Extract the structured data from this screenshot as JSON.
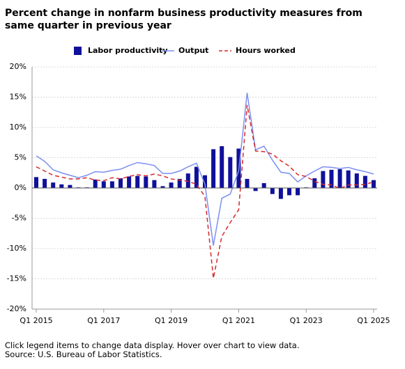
{
  "chart_data": {
    "type": "bar",
    "title": "Percent change in nonfarm business productivity measures from same quarter in previous year",
    "notes": [
      "Click legend items to change data display. Hover over chart to view data.",
      "Source: U.S. Bureau of Labor Statistics."
    ],
    "categories": [
      "Q1 2015",
      null,
      null,
      null,
      null,
      null,
      null,
      null,
      "Q1 2017",
      null,
      null,
      null,
      null,
      null,
      null,
      null,
      "Q1 2019",
      null,
      null,
      null,
      null,
      null,
      null,
      null,
      "Q1 2021",
      null,
      null,
      null,
      null,
      null,
      null,
      null,
      "Q1 2023",
      null,
      null,
      null,
      null,
      null,
      null,
      null,
      "Q1 2025"
    ],
    "series": [
      {
        "name": "Labor productivity",
        "type": "bar",
        "color": "#10109a",
        "values": [
          1.8,
          1.5,
          0.9,
          0.6,
          0.5,
          0.1,
          0.1,
          1.4,
          1.1,
          1.1,
          1.6,
          1.9,
          2.0,
          1.9,
          1.3,
          0.3,
          0.9,
          1.5,
          2.4,
          3.5,
          2.1,
          6.4,
          6.9,
          5.1,
          6.5,
          1.5,
          -0.5,
          0.8,
          -1.0,
          -1.8,
          -1.2,
          -1.2,
          0.1,
          1.6,
          2.8,
          3.0,
          3.1,
          2.9,
          2.4,
          2.0,
          1.3
        ]
      },
      {
        "name": "Output",
        "type": "line",
        "color": "#7b8ff2",
        "values": [
          5.3,
          4.4,
          3.0,
          2.5,
          2.1,
          1.7,
          2.1,
          2.7,
          2.6,
          2.9,
          3.1,
          3.7,
          4.2,
          4.0,
          3.7,
          2.4,
          2.4,
          2.8,
          3.5,
          4.1,
          0.6,
          -9.5,
          -1.7,
          -1.0,
          2.8,
          15.7,
          6.3,
          6.9,
          4.6,
          2.6,
          2.4,
          1.0,
          2.0,
          2.8,
          3.5,
          3.4,
          3.2,
          3.4,
          3.0,
          2.7,
          2.3
        ]
      },
      {
        "name": "Hours worked",
        "type": "dashed-line",
        "color": "#d6282b",
        "values": [
          3.5,
          2.8,
          2.1,
          1.8,
          1.5,
          1.5,
          1.7,
          1.3,
          1.2,
          1.7,
          1.5,
          1.9,
          2.2,
          2.0,
          2.3,
          2.0,
          1.5,
          1.3,
          1.1,
          0.6,
          -1.4,
          -14.9,
          -8.0,
          -5.7,
          -3.6,
          13.7,
          6.1,
          6.0,
          5.6,
          4.5,
          3.6,
          2.2,
          1.9,
          1.1,
          0.6,
          0.5,
          -0.1,
          0.5,
          0.5,
          0.6,
          1.0
        ]
      }
    ],
    "ylim": [
      -20,
      20
    ],
    "yticks": [
      {
        "value": -20,
        "label": "-20%"
      },
      {
        "value": -15,
        "label": "-15%"
      },
      {
        "value": -10,
        "label": "-10%"
      },
      {
        "value": -5,
        "label": "-5%"
      },
      {
        "value": 0,
        "label": "0%"
      },
      {
        "value": 5,
        "label": "5%"
      },
      {
        "value": 10,
        "label": "10%"
      },
      {
        "value": 15,
        "label": "15%"
      },
      {
        "value": 20,
        "label": "20%"
      }
    ],
    "grid": true,
    "legend": "top"
  }
}
